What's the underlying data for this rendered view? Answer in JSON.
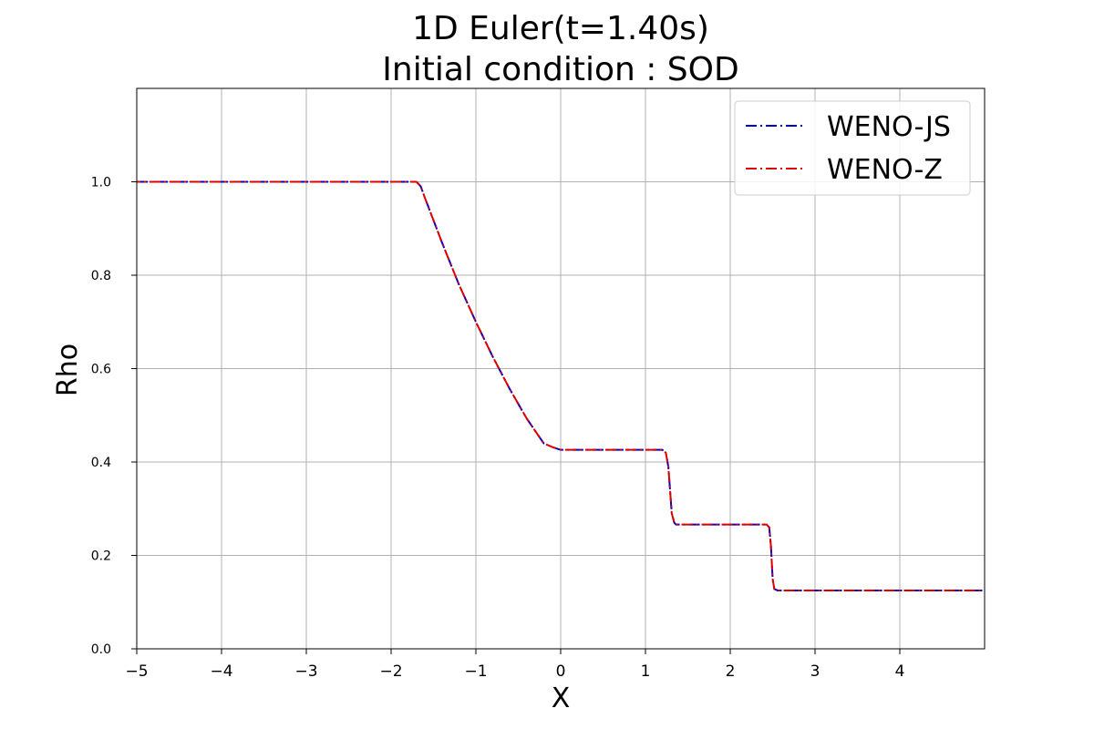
{
  "chart_data": {
    "type": "line",
    "title": "1D Euler(t=1.40s)",
    "subtitle": "Initial condition : SOD",
    "xlabel": "X",
    "ylabel": "Rho",
    "xlim": [
      -5,
      5
    ],
    "ylim": [
      0,
      1.2
    ],
    "grid": true,
    "legend_position": "top-right",
    "xticks": [
      -5,
      -4,
      -3,
      -2,
      -1,
      0,
      1,
      2,
      3,
      4
    ],
    "xtick_labels": [
      "−5",
      "−4",
      "−3",
      "−2",
      "−1",
      "0",
      "1",
      "2",
      "3",
      "4"
    ],
    "yticks": [
      0,
      0.2,
      0.4,
      0.6,
      0.8,
      1.0
    ],
    "ytick_labels": [
      "0.0",
      "0.2",
      "0.4",
      "0.6",
      "0.8",
      "1.0"
    ],
    "series": [
      {
        "name": "WENO-JS",
        "color": "#0000cc",
        "linestyle": "dash-dot",
        "x": [
          -5,
          -1.7,
          -1.65,
          -1.6,
          -1.4,
          -1.2,
          -1.0,
          -0.8,
          -0.6,
          -0.4,
          -0.2,
          -0.1,
          0,
          1.2,
          1.24,
          1.27,
          1.29,
          1.31,
          1.34,
          1.36,
          1.4,
          2.43,
          2.46,
          2.48,
          2.5,
          2.52,
          2.56,
          2.6,
          5
        ],
        "y": [
          1.0,
          1.0,
          0.99,
          0.965,
          0.87,
          0.78,
          0.7,
          0.625,
          0.556,
          0.493,
          0.44,
          0.432,
          0.426,
          0.426,
          0.42,
          0.39,
          0.34,
          0.29,
          0.27,
          0.266,
          0.266,
          0.266,
          0.26,
          0.22,
          0.15,
          0.128,
          0.125,
          0.125,
          0.125
        ]
      },
      {
        "name": "WENO-Z",
        "color": "#dd0000",
        "linestyle": "dash-dot",
        "x": [
          -5,
          -1.7,
          -1.65,
          -1.6,
          -1.4,
          -1.2,
          -1.0,
          -0.8,
          -0.6,
          -0.4,
          -0.2,
          -0.1,
          0,
          1.2,
          1.24,
          1.27,
          1.29,
          1.31,
          1.34,
          1.36,
          1.4,
          2.43,
          2.46,
          2.48,
          2.5,
          2.52,
          2.56,
          2.6,
          5
        ],
        "y": [
          1.0,
          1.0,
          0.99,
          0.965,
          0.87,
          0.78,
          0.7,
          0.625,
          0.556,
          0.493,
          0.44,
          0.432,
          0.426,
          0.426,
          0.42,
          0.39,
          0.34,
          0.29,
          0.27,
          0.266,
          0.266,
          0.266,
          0.26,
          0.22,
          0.15,
          0.128,
          0.125,
          0.125,
          0.125
        ]
      }
    ]
  }
}
